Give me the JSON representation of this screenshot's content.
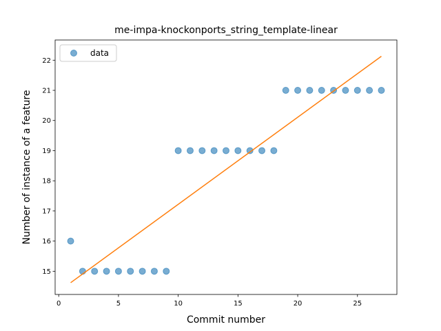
{
  "chart_data": {
    "type": "scatter",
    "title": "me-impa-knockonports_string_template-linear",
    "xlabel": "Commit number",
    "ylabel": "Number of instance of a feature",
    "xlim": [
      -0.3,
      28.3
    ],
    "ylim": [
      14.23,
      22.67
    ],
    "xticks": [
      0,
      5,
      10,
      15,
      20,
      25
    ],
    "yticks": [
      15,
      16,
      17,
      18,
      19,
      20,
      21,
      22
    ],
    "grid": false,
    "legend_position": "top-left",
    "series": [
      {
        "name": "data",
        "kind": "scatter",
        "color": "#1f77b4",
        "x": [
          1,
          2,
          3,
          4,
          5,
          6,
          7,
          8,
          9,
          10,
          11,
          12,
          13,
          14,
          15,
          16,
          17,
          18,
          19,
          20,
          21,
          22,
          23,
          24,
          25,
          26,
          27
        ],
        "y": [
          16,
          15,
          15,
          15,
          15,
          15,
          15,
          15,
          15,
          19,
          19,
          19,
          19,
          19,
          19,
          19,
          19,
          19,
          21,
          21,
          21,
          21,
          21,
          21,
          21,
          21,
          21
        ]
      },
      {
        "name": "fit",
        "kind": "line",
        "color": "#ff7f0e",
        "x": [
          1,
          27
        ],
        "y": [
          14.62,
          22.13
        ]
      }
    ],
    "legend": [
      {
        "label": "data",
        "color": "#1f77b4"
      }
    ]
  }
}
